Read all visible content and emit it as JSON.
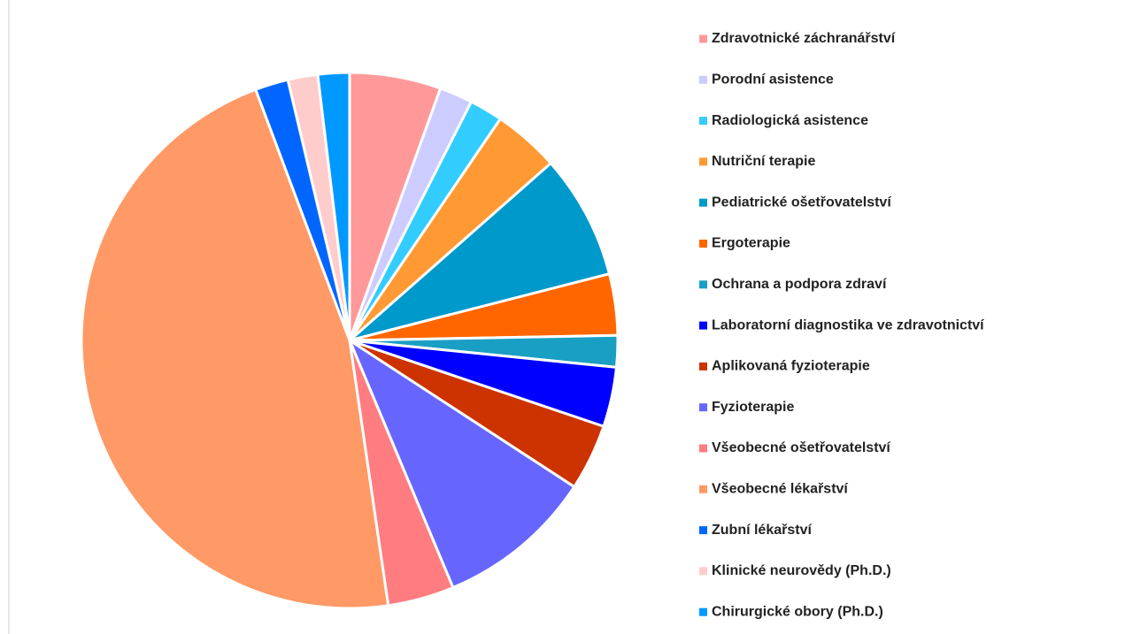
{
  "chart_data": {
    "type": "pie",
    "categories": [
      "Zdravotnické záchranářství",
      "Porodní asistence",
      "Radiologická asistence",
      "Nutriční terapie",
      "Pediatrické ošetřovatelství",
      "Ergoterapie",
      "Ochrana a podpora zdraví",
      "Laboratorní diagnostika ve zdravotnictví",
      "Aplikovaná fyzioterapie",
      "Fyzioterapie",
      "Všeobecné ošetřovatelství",
      "Všeobecné lékařství",
      "Zubní lékařství",
      "Klinické neurovědy (Ph.D.)",
      "Chirurgické obory (Ph.D.)"
    ],
    "values": [
      5.5,
      2,
      2,
      4,
      7.5,
      3.7,
      1.9,
      3.6,
      4,
      9.5,
      4,
      46.6,
      2,
      1.8,
      1.9
    ],
    "colors": [
      "#ff9999",
      "#ccccff",
      "#33ccff",
      "#ff9933",
      "#0099cc",
      "#ff6600",
      "#1a9fc4",
      "#0000ff",
      "#cc3300",
      "#6666ff",
      "#ff7c80",
      "#ff9966",
      "#0066ff",
      "#ffcccc",
      "#0099ff"
    ],
    "legend": "right"
  }
}
